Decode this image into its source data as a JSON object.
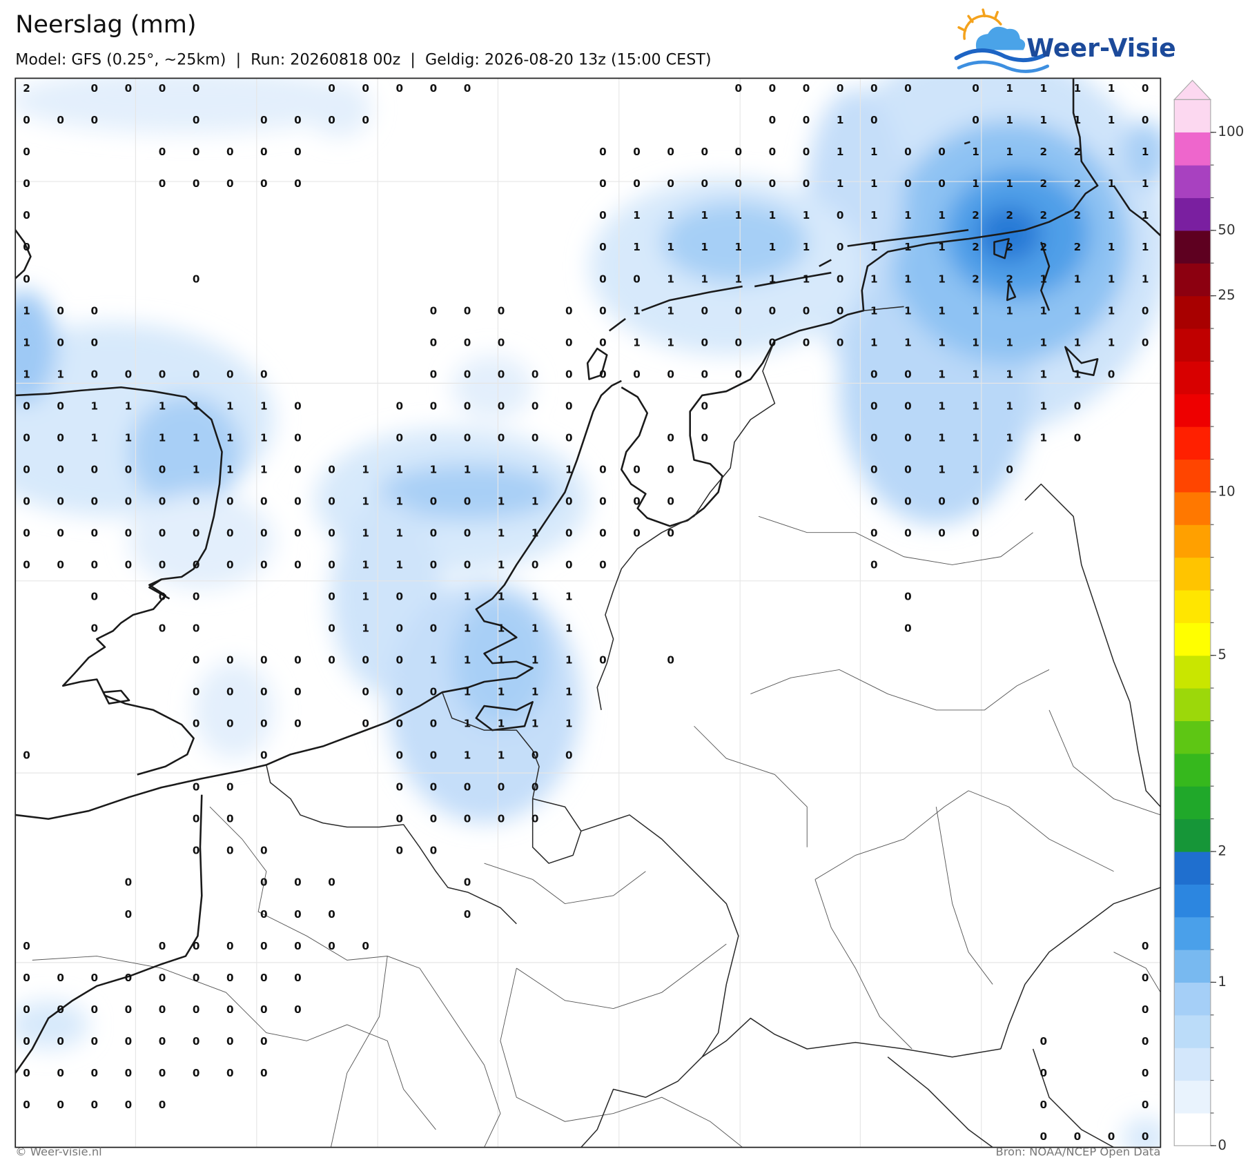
{
  "header": {
    "title": "Neerslag (mm)",
    "subtitle": "Model: GFS (0.25°, ~25km)  |  Run: 20260818 00z  |  Geldig: 2026-08-20 13z (15:00 CEST)"
  },
  "logo": {
    "text": "Weer-Visie"
  },
  "footer": {
    "left": "© Weer-visie.nl",
    "right": "Bron: NOAA/NCEP Open Data"
  },
  "colorbar": {
    "levels": [
      0,
      0.2,
      0.4,
      0.6,
      0.8,
      1,
      1.25,
      1.5,
      1.75,
      2,
      2.5,
      3,
      3.5,
      4,
      4.5,
      5,
      6,
      7,
      8,
      9,
      10,
      12.5,
      15,
      17.5,
      20,
      22.5,
      25,
      37.5,
      50,
      62.5,
      75,
      100
    ],
    "colors": [
      "#ffffff",
      "#e9f3fd",
      "#d3e7fb",
      "#bbdcf9",
      "#a5cff7",
      "#78b9f0",
      "#4aa0ea",
      "#2c86e0",
      "#1f6fcf",
      "#169638",
      "#20a82a",
      "#36b81d",
      "#5ec614",
      "#9cd80a",
      "#c9e600",
      "#ffff00",
      "#ffe600",
      "#ffc400",
      "#ffa000",
      "#ff7800",
      "#ff4500",
      "#ff2000",
      "#ee0000",
      "#d80000",
      "#c00000",
      "#a80000",
      "#8c0010",
      "#5e0020",
      "#7a1fa0",
      "#a841c0",
      "#ee66cc"
    ],
    "extend_color": "#fcd8f0",
    "ticks": [
      0,
      1,
      2,
      5,
      10,
      25,
      50,
      100
    ]
  },
  "grid": {
    "rows": [
      [
        2,
        null,
        0,
        0,
        0,
        0,
        null,
        null,
        null,
        0,
        0,
        0,
        0,
        0,
        null,
        null,
        null,
        null,
        null,
        null,
        null,
        0,
        0,
        0,
        0,
        0,
        0,
        null,
        0,
        1,
        1,
        1,
        1,
        0
      ],
      [
        0,
        0,
        0,
        null,
        null,
        0,
        null,
        0,
        0,
        0,
        0,
        null,
        null,
        null,
        null,
        null,
        null,
        null,
        null,
        null,
        null,
        null,
        0,
        0,
        1,
        0,
        null,
        null,
        0,
        1,
        1,
        1,
        1,
        0
      ],
      [
        0,
        null,
        null,
        null,
        0,
        0,
        0,
        0,
        0,
        null,
        null,
        null,
        null,
        null,
        null,
        null,
        null,
        0,
        0,
        0,
        0,
        0,
        0,
        0,
        1,
        1,
        0,
        0,
        1,
        1,
        2,
        2,
        1,
        1
      ],
      [
        0,
        null,
        null,
        null,
        0,
        0,
        0,
        0,
        0,
        null,
        null,
        null,
        null,
        null,
        null,
        null,
        null,
        0,
        0,
        0,
        0,
        0,
        0,
        0,
        1,
        1,
        0,
        0,
        1,
        1,
        2,
        2,
        1,
        1
      ],
      [
        0,
        null,
        null,
        null,
        null,
        null,
        null,
        null,
        null,
        null,
        null,
        null,
        null,
        null,
        null,
        null,
        null,
        0,
        1,
        1,
        1,
        1,
        1,
        1,
        0,
        1,
        1,
        1,
        2,
        2,
        2,
        2,
        1,
        1
      ],
      [
        0,
        null,
        null,
        null,
        null,
        null,
        null,
        null,
        null,
        null,
        null,
        null,
        null,
        null,
        null,
        null,
        null,
        0,
        1,
        1,
        1,
        1,
        1,
        1,
        0,
        1,
        1,
        1,
        2,
        2,
        2,
        2,
        1,
        1
      ],
      [
        0,
        null,
        null,
        null,
        null,
        0,
        null,
        null,
        null,
        null,
        null,
        null,
        null,
        null,
        null,
        null,
        null,
        0,
        0,
        1,
        1,
        1,
        1,
        1,
        0,
        1,
        1,
        1,
        2,
        2,
        1,
        1,
        1,
        1
      ],
      [
        1,
        0,
        0,
        null,
        null,
        null,
        null,
        null,
        null,
        null,
        null,
        null,
        0,
        0,
        0,
        null,
        0,
        0,
        1,
        1,
        0,
        0,
        0,
        0,
        0,
        1,
        1,
        1,
        1,
        1,
        1,
        1,
        1,
        0
      ],
      [
        1,
        0,
        0,
        null,
        null,
        null,
        null,
        null,
        null,
        null,
        null,
        null,
        0,
        0,
        0,
        null,
        0,
        0,
        1,
        1,
        0,
        0,
        0,
        0,
        0,
        1,
        1,
        1,
        1,
        1,
        1,
        1,
        1,
        0
      ],
      [
        1,
        1,
        0,
        0,
        0,
        0,
        0,
        0,
        null,
        null,
        null,
        null,
        0,
        0,
        0,
        0,
        0,
        0,
        0,
        0,
        0,
        0,
        null,
        null,
        null,
        0,
        0,
        1,
        1,
        1,
        1,
        1,
        0,
        null
      ],
      [
        0,
        0,
        1,
        1,
        1,
        1,
        1,
        1,
        0,
        null,
        null,
        0,
        0,
        0,
        0,
        0,
        0,
        null,
        null,
        null,
        0,
        null,
        null,
        null,
        null,
        0,
        0,
        1,
        1,
        1,
        1,
        0,
        null,
        null
      ],
      [
        0,
        0,
        1,
        1,
        1,
        1,
        1,
        1,
        0,
        null,
        null,
        0,
        0,
        0,
        0,
        0,
        0,
        null,
        null,
        0,
        0,
        null,
        null,
        null,
        null,
        0,
        0,
        1,
        1,
        1,
        1,
        0,
        null,
        null
      ],
      [
        0,
        0,
        0,
        0,
        0,
        1,
        1,
        1,
        0,
        0,
        1,
        1,
        1,
        1,
        1,
        1,
        1,
        0,
        0,
        0,
        null,
        null,
        null,
        null,
        null,
        0,
        0,
        1,
        1,
        0,
        null,
        null,
        null,
        null
      ],
      [
        0,
        0,
        0,
        0,
        0,
        0,
        0,
        0,
        0,
        0,
        1,
        1,
        0,
        0,
        1,
        1,
        0,
        0,
        0,
        0,
        null,
        null,
        null,
        null,
        null,
        0,
        0,
        0,
        0,
        null,
        null,
        null,
        null,
        null
      ],
      [
        0,
        0,
        0,
        0,
        0,
        0,
        0,
        0,
        0,
        0,
        1,
        1,
        0,
        0,
        1,
        1,
        0,
        0,
        0,
        0,
        null,
        null,
        null,
        null,
        null,
        0,
        0,
        0,
        0,
        null,
        null,
        null,
        null,
        null
      ],
      [
        0,
        0,
        0,
        0,
        0,
        0,
        0,
        0,
        0,
        0,
        1,
        1,
        0,
        0,
        1,
        0,
        0,
        0,
        null,
        null,
        null,
        null,
        null,
        null,
        null,
        0,
        null,
        null,
        null,
        null,
        null,
        null,
        null,
        null
      ],
      [
        null,
        null,
        0,
        null,
        0,
        0,
        null,
        null,
        null,
        0,
        1,
        0,
        0,
        1,
        1,
        1,
        1,
        null,
        null,
        null,
        null,
        null,
        null,
        null,
        null,
        null,
        0,
        null,
        null,
        null,
        null,
        null,
        null,
        null
      ],
      [
        null,
        null,
        0,
        null,
        0,
        0,
        null,
        null,
        null,
        0,
        1,
        0,
        0,
        1,
        1,
        1,
        1,
        null,
        null,
        null,
        null,
        null,
        null,
        null,
        null,
        null,
        0,
        null,
        null,
        null,
        null,
        null,
        null,
        null
      ],
      [
        null,
        null,
        null,
        null,
        null,
        0,
        0,
        0,
        0,
        0,
        0,
        0,
        1,
        1,
        1,
        1,
        1,
        0,
        null,
        0,
        null,
        null,
        null,
        null,
        null,
        null,
        null,
        null,
        null,
        null,
        null,
        null,
        null,
        null
      ],
      [
        null,
        null,
        null,
        null,
        null,
        0,
        0,
        0,
        0,
        null,
        0,
        0,
        0,
        1,
        1,
        1,
        1,
        null,
        null,
        null,
        null,
        null,
        null,
        null,
        null,
        null,
        null,
        null,
        null,
        null,
        null,
        null,
        null,
        null
      ],
      [
        null,
        null,
        null,
        null,
        null,
        0,
        0,
        0,
        0,
        null,
        0,
        0,
        0,
        1,
        1,
        1,
        1,
        null,
        null,
        null,
        null,
        null,
        null,
        null,
        null,
        null,
        null,
        null,
        null,
        null,
        null,
        null,
        null,
        null
      ],
      [
        0,
        null,
        null,
        null,
        null,
        null,
        null,
        0,
        null,
        null,
        null,
        0,
        0,
        1,
        1,
        0,
        0,
        null,
        null,
        null,
        null,
        null,
        null,
        null,
        null,
        null,
        null,
        null,
        null,
        null,
        null,
        null,
        null,
        null
      ],
      [
        null,
        null,
        null,
        null,
        null,
        0,
        0,
        null,
        null,
        null,
        null,
        0,
        0,
        0,
        0,
        0,
        null,
        null,
        null,
        null,
        null,
        null,
        null,
        null,
        null,
        null,
        null,
        null,
        null,
        null,
        null,
        null,
        null,
        null
      ],
      [
        null,
        null,
        null,
        null,
        null,
        0,
        0,
        null,
        null,
        null,
        null,
        0,
        0,
        0,
        0,
        0,
        null,
        null,
        null,
        null,
        null,
        null,
        null,
        null,
        null,
        null,
        null,
        null,
        null,
        null,
        null,
        null,
        null,
        null
      ],
      [
        null,
        null,
        null,
        null,
        null,
        0,
        0,
        0,
        null,
        null,
        null,
        0,
        0,
        null,
        null,
        null,
        null,
        null,
        null,
        null,
        null,
        null,
        null,
        null,
        null,
        null,
        null,
        null,
        null,
        null,
        null,
        null,
        null,
        null
      ],
      [
        null,
        null,
        null,
        0,
        null,
        null,
        null,
        0,
        0,
        0,
        null,
        null,
        null,
        0,
        null,
        null,
        null,
        null,
        null,
        null,
        null,
        null,
        null,
        null,
        null,
        null,
        null,
        null,
        null,
        null,
        null,
        null,
        null,
        null
      ],
      [
        null,
        null,
        null,
        0,
        null,
        null,
        null,
        0,
        0,
        0,
        null,
        null,
        null,
        0,
        null,
        null,
        null,
        null,
        null,
        null,
        null,
        null,
        null,
        null,
        null,
        null,
        null,
        null,
        null,
        null,
        null,
        null,
        null,
        null
      ],
      [
        0,
        null,
        null,
        null,
        0,
        0,
        0,
        0,
        0,
        0,
        0,
        null,
        null,
        null,
        null,
        null,
        null,
        null,
        null,
        null,
        null,
        null,
        null,
        null,
        null,
        null,
        null,
        null,
        null,
        null,
        null,
        null,
        null,
        0
      ],
      [
        0,
        0,
        0,
        0,
        0,
        0,
        0,
        0,
        0,
        null,
        null,
        null,
        null,
        null,
        null,
        null,
        null,
        null,
        null,
        null,
        null,
        null,
        null,
        null,
        null,
        null,
        null,
        null,
        null,
        null,
        null,
        null,
        null,
        0
      ],
      [
        0,
        0,
        0,
        0,
        0,
        0,
        0,
        0,
        0,
        null,
        null,
        null,
        null,
        null,
        null,
        null,
        null,
        null,
        null,
        null,
        null,
        null,
        null,
        null,
        null,
        null,
        null,
        null,
        null,
        null,
        null,
        null,
        null,
        0
      ],
      [
        0,
        0,
        0,
        0,
        0,
        0,
        0,
        0,
        null,
        null,
        null,
        null,
        null,
        null,
        null,
        null,
        null,
        null,
        null,
        null,
        null,
        null,
        null,
        null,
        null,
        null,
        null,
        null,
        null,
        null,
        0,
        null,
        null,
        0
      ],
      [
        0,
        0,
        0,
        0,
        0,
        0,
        0,
        0,
        null,
        null,
        null,
        null,
        null,
        null,
        null,
        null,
        null,
        null,
        null,
        null,
        null,
        null,
        null,
        null,
        null,
        null,
        null,
        null,
        null,
        null,
        0,
        null,
        null,
        0
      ],
      [
        0,
        0,
        0,
        0,
        0,
        null,
        null,
        null,
        null,
        null,
        null,
        null,
        null,
        null,
        null,
        null,
        null,
        null,
        null,
        null,
        null,
        null,
        null,
        null,
        null,
        null,
        null,
        null,
        null,
        null,
        0,
        null,
        null,
        0
      ],
      [
        null,
        null,
        null,
        null,
        null,
        null,
        null,
        null,
        null,
        null,
        null,
        null,
        null,
        null,
        null,
        null,
        null,
        null,
        null,
        null,
        null,
        null,
        null,
        null,
        null,
        null,
        null,
        null,
        null,
        null,
        0,
        0,
        0,
        0
      ]
    ]
  }
}
